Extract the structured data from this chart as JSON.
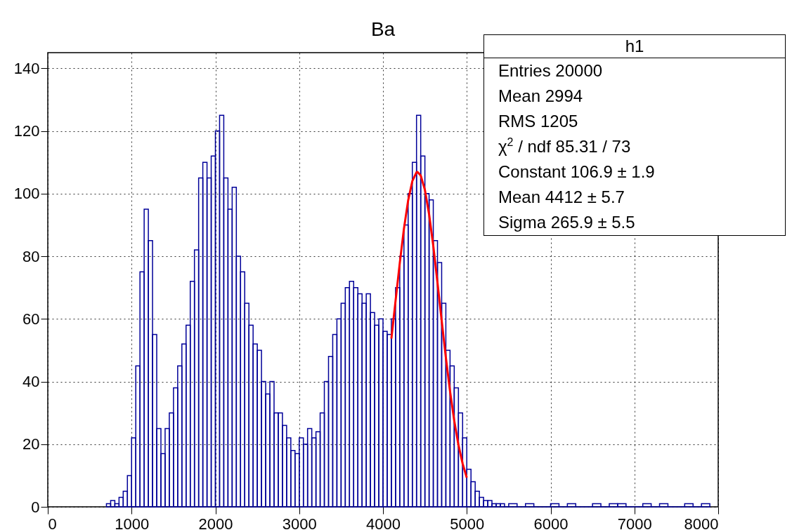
{
  "chart_data": {
    "type": "histogram",
    "title": "Ba",
    "color": "#000099",
    "bins": [
      700,
      750,
      800,
      850,
      900,
      950,
      1000,
      1050,
      1100,
      1150,
      1200,
      1250,
      1300,
      1350,
      1400,
      1450,
      1500,
      1550,
      1600,
      1650,
      1700,
      1750,
      1800,
      1850,
      1900,
      1950,
      2000,
      2050,
      2100,
      2150,
      2200,
      2250,
      2300,
      2350,
      2400,
      2450,
      2500,
      2550,
      2600,
      2650,
      2700,
      2750,
      2800,
      2850,
      2900,
      2950,
      3000,
      3050,
      3100,
      3150,
      3200,
      3250,
      3300,
      3350,
      3400,
      3450,
      3500,
      3550,
      3600,
      3650,
      3700,
      3750,
      3800,
      3850,
      3900,
      3950,
      4000,
      4050,
      4100,
      4150,
      4200,
      4250,
      4300,
      4350,
      4400,
      4450,
      4500,
      4550,
      4600,
      4650,
      4700,
      4750,
      4800,
      4850,
      4900,
      4950,
      5000,
      5050,
      5100,
      5150,
      5200,
      5250,
      5300,
      5350,
      5400,
      5450,
      5500,
      5600,
      5700,
      5800,
      5900,
      6000,
      6100,
      6200,
      6300,
      6400,
      6500,
      6600,
      6700,
      6800,
      6900,
      7000,
      7100,
      7200,
      7300,
      7400,
      7500,
      7600,
      7700,
      7800,
      7900
    ],
    "values": [
      1,
      2,
      1,
      3,
      5,
      10,
      22,
      45,
      75,
      95,
      85,
      55,
      25,
      17,
      25,
      30,
      38,
      45,
      52,
      58,
      72,
      82,
      105,
      110,
      105,
      112,
      120,
      125,
      105,
      95,
      102,
      80,
      75,
      65,
      58,
      52,
      50,
      40,
      36,
      40,
      30,
      30,
      26,
      22,
      18,
      17,
      22,
      20,
      25,
      22,
      24,
      30,
      40,
      48,
      55,
      60,
      65,
      70,
      72,
      70,
      68,
      65,
      68,
      62,
      58,
      60,
      56,
      55,
      60,
      70,
      80,
      90,
      100,
      110,
      125,
      112,
      100,
      98,
      85,
      78,
      65,
      50,
      45,
      38,
      30,
      22,
      12,
      8,
      5,
      3,
      2,
      2,
      1,
      1,
      1,
      0,
      1,
      0,
      1,
      0,
      0,
      1,
      0,
      1,
      0,
      0,
      1,
      0,
      1,
      1,
      0,
      0,
      1,
      0,
      1,
      0,
      0,
      1,
      0,
      1
    ],
    "series": [
      {
        "type": "line",
        "color": "#ff0000",
        "x": [
          4100,
          4150,
          4200,
          4250,
          4300,
          4350,
          4400,
          4412,
          4450,
          4500,
          4550,
          4600,
          4650,
          4700,
          4750,
          4800,
          4850,
          4900,
          4950,
          5000
        ],
        "values": [
          53.7,
          65.8,
          77.8,
          88.8,
          97.8,
          104.0,
          106.8,
          106.9,
          105.8,
          101.2,
          93.4,
          83.3,
          71.6,
          59.5,
          47.7,
          36.9,
          27.5,
          19.8,
          13.8,
          9.3
        ]
      }
    ],
    "xlim": [
      0,
      8000
    ],
    "xticks": [
      0,
      1000,
      2000,
      3000,
      4000,
      5000,
      6000,
      7000,
      8000
    ],
    "ylim": [
      0,
      145
    ],
    "yticks": [
      0,
      20,
      40,
      60,
      80,
      100,
      120,
      140
    ],
    "grid": true,
    "annotations": [
      "h1",
      "Entries 20000",
      "Mean 2994",
      "RMS 1205",
      "χ$^{2}$ / ndf 85.31 / 73",
      "Constant 106.9 ± 1.9",
      "Mean 4412 ± 5.7",
      "Sigma 265.9 ± 5.5"
    ]
  }
}
